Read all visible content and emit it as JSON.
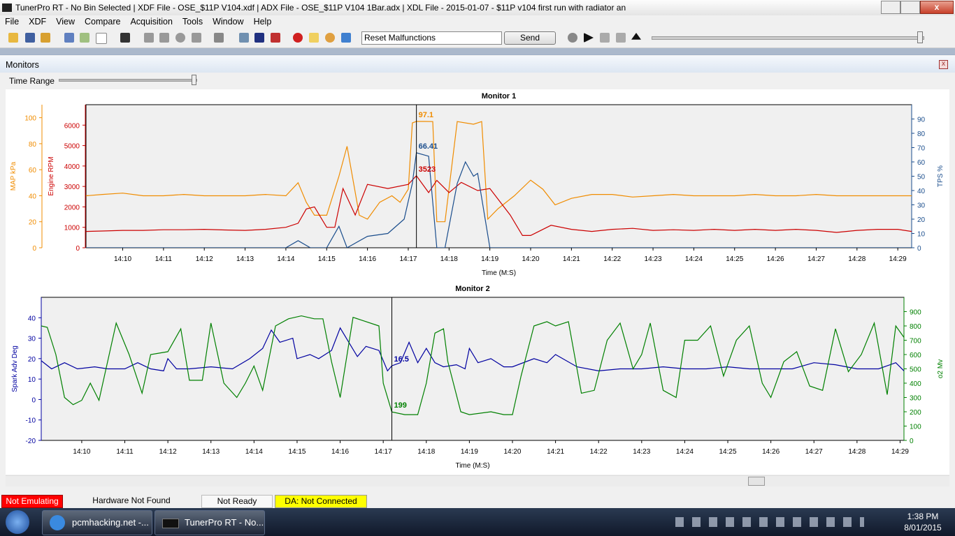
{
  "window": {
    "title": "TunerPro RT - No Bin Selected | XDF File - OSE_$11P V104.xdf | ADX File - OSE_$11P V104 1Bar.adx | XDL File - 2015-01-07 - $11P v104 first run with radiator an"
  },
  "menu": [
    "File",
    "XDF",
    "View",
    "Compare",
    "Acquisition",
    "Tools",
    "Window",
    "Help"
  ],
  "toolbar": {
    "dropdown": "Reset Malfunctions",
    "button": "Send"
  },
  "panel": {
    "title": "Monitors",
    "time_range_label": "Time Range"
  },
  "status_bar": [
    "Not Emulating",
    "Hardware Not Found",
    "Not Ready",
    "DA: Not Connected"
  ],
  "taskbar": {
    "items": [
      "pcmhacking.net -...",
      "TunerPro RT - No..."
    ],
    "time": "1:38 PM",
    "date": "8/01/2015"
  },
  "chart_data": [
    {
      "type": "line",
      "title": "Monitor 1",
      "xlabel": "Time (M:S)",
      "xlim": [
        849.1,
        869.34
      ],
      "xticks": [
        {
          "value": 850,
          "label": "14:10"
        },
        {
          "value": 851,
          "label": "14:11"
        },
        {
          "value": 852,
          "label": "14:12"
        },
        {
          "value": 853,
          "label": "14:13"
        },
        {
          "value": 854,
          "label": "14:14"
        },
        {
          "value": 855,
          "label": "14:15"
        },
        {
          "value": 856,
          "label": "14:16"
        },
        {
          "value": 857,
          "label": "14:17"
        },
        {
          "value": 858,
          "label": "14:18"
        },
        {
          "value": 859,
          "label": "14:19"
        },
        {
          "value": 860,
          "label": "14:20"
        },
        {
          "value": 861,
          "label": "14:21"
        },
        {
          "value": 862,
          "label": "14:22"
        },
        {
          "value": 863,
          "label": "14:23"
        },
        {
          "value": 864,
          "label": "14:24"
        },
        {
          "value": 865,
          "label": "14:25"
        },
        {
          "value": 866,
          "label": "14:26"
        },
        {
          "value": 867,
          "label": "14:27"
        },
        {
          "value": 868,
          "label": "14:28"
        },
        {
          "value": 869,
          "label": "14:29"
        }
      ],
      "cursor": 857.2,
      "axes": [
        {
          "label": "MAP kPa",
          "color": "#f08c00",
          "ylim": [
            0,
            110
          ],
          "yticks": [
            0,
            20,
            40,
            60,
            80,
            100
          ]
        },
        {
          "label": "Engine RPM",
          "color": "#cc0000",
          "ylim": [
            0,
            7000
          ],
          "yticks": [
            0,
            1000,
            2000,
            3000,
            4000,
            5000,
            6000
          ]
        },
        {
          "label": "TPS %",
          "color": "#1a4d8c",
          "ylim": [
            0,
            100
          ],
          "yticks": [
            0,
            10,
            20,
            30,
            40,
            50,
            60,
            70,
            80,
            90
          ]
        }
      ],
      "series": [
        {
          "axis": 0,
          "color": "#f08c00",
          "cursor_value": 97.1,
          "x": [
            849.1,
            849.5,
            850,
            850.5,
            851,
            851.5,
            852,
            852.5,
            853,
            853.5,
            854,
            854.3,
            854.5,
            854.7,
            855,
            855.3,
            855.5,
            855.8,
            856,
            856.3,
            856.6,
            856.8,
            857,
            857.1,
            857.2,
            857.4,
            857.6,
            857.7,
            857.9,
            858.2,
            858.6,
            858.8,
            858.95,
            859.2,
            859.6,
            860,
            860.3,
            860.6,
            861,
            861.5,
            862,
            862.5,
            863,
            863.5,
            864,
            864.5,
            865,
            865.5,
            866,
            866.5,
            867,
            867.5,
            868,
            868.5,
            869,
            869.34
          ],
          "values": [
            40,
            41,
            42,
            40,
            40,
            41,
            40,
            40,
            40,
            41,
            40,
            50,
            35,
            25,
            25,
            55,
            78,
            25,
            22,
            35,
            40,
            35,
            45,
            96,
            97.1,
            97.1,
            97,
            20,
            20,
            97,
            95,
            97,
            22,
            30,
            40,
            52,
            45,
            33,
            38,
            41,
            41,
            39,
            40,
            41,
            40,
            40,
            40,
            41,
            40,
            40,
            41,
            40,
            40,
            40,
            40,
            40
          ]
        },
        {
          "axis": 1,
          "color": "#cc0000",
          "cursor_value": 3523,
          "x": [
            849.1,
            849.5,
            850,
            850.5,
            851,
            851.5,
            852,
            852.5,
            853,
            853.5,
            854,
            854.3,
            854.5,
            854.7,
            855,
            855.2,
            855.4,
            855.7,
            856,
            856.5,
            857,
            857.2,
            857.5,
            857.7,
            858,
            858.3,
            858.7,
            859,
            859.5,
            859.8,
            860,
            860.5,
            861,
            861.5,
            862,
            862.5,
            863,
            863.5,
            864,
            864.5,
            865,
            865.5,
            866,
            866.5,
            867,
            867.5,
            868,
            868.5,
            869,
            869.34
          ],
          "values": [
            800,
            820,
            850,
            850,
            880,
            880,
            900,
            870,
            850,
            900,
            1000,
            1200,
            1900,
            2000,
            1000,
            1000,
            2900,
            1600,
            3100,
            2900,
            3100,
            3523,
            2700,
            3300,
            2700,
            3200,
            2800,
            2900,
            1600,
            600,
            600,
            1100,
            900,
            800,
            900,
            950,
            850,
            880,
            850,
            900,
            850,
            900,
            850,
            900,
            850,
            750,
            850,
            900,
            900,
            800
          ]
        },
        {
          "axis": 2,
          "color": "#1a4d8c",
          "cursor_value": 66.41,
          "x": [
            849.1,
            854.0,
            854.3,
            854.6,
            855.0,
            855.3,
            855.5,
            856.0,
            856.5,
            856.9,
            857.1,
            857.2,
            857.5,
            857.7,
            857.9,
            858.2,
            858.4,
            858.6,
            858.7,
            859.0,
            869.34
          ],
          "values": [
            0,
            0,
            5,
            0,
            0,
            15,
            0,
            8,
            10,
            20,
            45,
            66.41,
            64,
            0,
            0,
            45,
            60,
            50,
            52,
            0,
            0
          ]
        }
      ]
    },
    {
      "type": "line",
      "title": "Monitor 2",
      "xlabel": "Time (M:S)",
      "xlim": [
        849.06,
        869.09
      ],
      "xticks": [
        {
          "value": 850,
          "label": "14:10"
        },
        {
          "value": 851,
          "label": "14:11"
        },
        {
          "value": 852,
          "label": "14:12"
        },
        {
          "value": 853,
          "label": "14:13"
        },
        {
          "value": 854,
          "label": "14:14"
        },
        {
          "value": 855,
          "label": "14:15"
        },
        {
          "value": 856,
          "label": "14:16"
        },
        {
          "value": 857,
          "label": "14:17"
        },
        {
          "value": 858,
          "label": "14:18"
        },
        {
          "value": 859,
          "label": "14:19"
        },
        {
          "value": 860,
          "label": "14:20"
        },
        {
          "value": 861,
          "label": "14:21"
        },
        {
          "value": 862,
          "label": "14:22"
        },
        {
          "value": 863,
          "label": "14:23"
        },
        {
          "value": 864,
          "label": "14:24"
        },
        {
          "value": 865,
          "label": "14:25"
        },
        {
          "value": 866,
          "label": "14:26"
        },
        {
          "value": 867,
          "label": "14:27"
        },
        {
          "value": 868,
          "label": "14:28"
        },
        {
          "value": 869,
          "label": "14:29"
        }
      ],
      "cursor": 857.2,
      "axes": [
        {
          "label": "Spark Adv Deg",
          "color": "#0000a0",
          "ylim": [
            -20,
            50
          ],
          "yticks": [
            -20,
            -10,
            0,
            10,
            20,
            30,
            40
          ]
        },
        {
          "label": "o2 Mv",
          "color": "#008000",
          "ylim": [
            0,
            1000
          ],
          "yticks": [
            0,
            100,
            200,
            300,
            400,
            500,
            600,
            700,
            800,
            900
          ]
        }
      ],
      "series": [
        {
          "axis": 0,
          "color": "#0000a0",
          "cursor_value": 16.5,
          "x": [
            849.06,
            849.3,
            849.6,
            849.9,
            850.3,
            850.6,
            851,
            851.3,
            851.6,
            851.9,
            852,
            852.2,
            852.5,
            853,
            853.5,
            853.9,
            854.2,
            854.4,
            854.6,
            854.9,
            855,
            855.3,
            855.5,
            855.8,
            856,
            856.2,
            856.4,
            856.6,
            856.9,
            857.1,
            857.2,
            857.4,
            857.6,
            857.8,
            858,
            858.2,
            858.4,
            858.7,
            858.9,
            859,
            859.2,
            859.5,
            859.8,
            860,
            860.5,
            860.8,
            861,
            861.5,
            862,
            862.5,
            863,
            863.5,
            864,
            864.5,
            865,
            865.5,
            866,
            866.5,
            867,
            867.5,
            868,
            868.5,
            868.9,
            869.09
          ],
          "values": [
            19,
            15,
            18,
            15,
            16,
            15,
            15,
            18,
            15,
            14,
            20,
            15,
            15,
            16,
            15,
            20,
            25,
            34,
            28,
            30,
            20,
            22,
            20,
            24,
            35,
            28,
            21,
            26,
            24,
            14,
            16.5,
            18,
            28,
            18,
            25,
            18,
            16,
            17,
            15,
            25,
            18,
            20,
            16,
            16,
            20,
            18,
            22,
            16,
            14,
            15,
            15,
            16,
            15,
            15,
            16,
            15,
            15,
            15,
            18,
            17,
            15,
            15,
            18,
            14
          ]
        },
        {
          "axis": 1,
          "color": "#008000",
          "cursor_value": 199,
          "x": [
            849.06,
            849.2,
            849.4,
            849.6,
            849.8,
            850,
            850.2,
            850.4,
            850.8,
            851.1,
            851.4,
            851.6,
            852,
            852.3,
            852.5,
            852.8,
            853,
            853.3,
            853.6,
            853.8,
            854,
            854.2,
            854.5,
            854.8,
            855.1,
            855.4,
            855.6,
            855.8,
            856,
            856.3,
            856.5,
            856.9,
            857,
            857.2,
            857.5,
            857.8,
            858,
            858.2,
            858.4,
            858.5,
            858.8,
            859,
            859.5,
            859.8,
            860,
            860.2,
            860.5,
            860.8,
            861,
            861.3,
            861.6,
            861.9,
            862.2,
            862.5,
            862.8,
            863,
            863.2,
            863.5,
            863.8,
            864,
            864.3,
            864.6,
            864.9,
            865.2,
            865.5,
            865.8,
            866,
            866.3,
            866.6,
            866.9,
            867.2,
            867.5,
            867.8,
            868.1,
            868.4,
            868.7,
            868.9,
            869.09
          ],
          "values": [
            800,
            790,
            600,
            300,
            250,
            280,
            400,
            280,
            820,
            600,
            330,
            600,
            620,
            780,
            420,
            420,
            820,
            400,
            300,
            400,
            520,
            350,
            800,
            850,
            870,
            850,
            850,
            550,
            300,
            860,
            840,
            800,
            400,
            199,
            180,
            180,
            400,
            750,
            780,
            550,
            200,
            180,
            200,
            180,
            180,
            450,
            800,
            830,
            800,
            830,
            330,
            350,
            700,
            820,
            500,
            600,
            820,
            350,
            300,
            700,
            700,
            800,
            450,
            700,
            800,
            400,
            300,
            550,
            620,
            380,
            350,
            780,
            480,
            600,
            820,
            320,
            800,
            720
          ]
        }
      ]
    }
  ]
}
